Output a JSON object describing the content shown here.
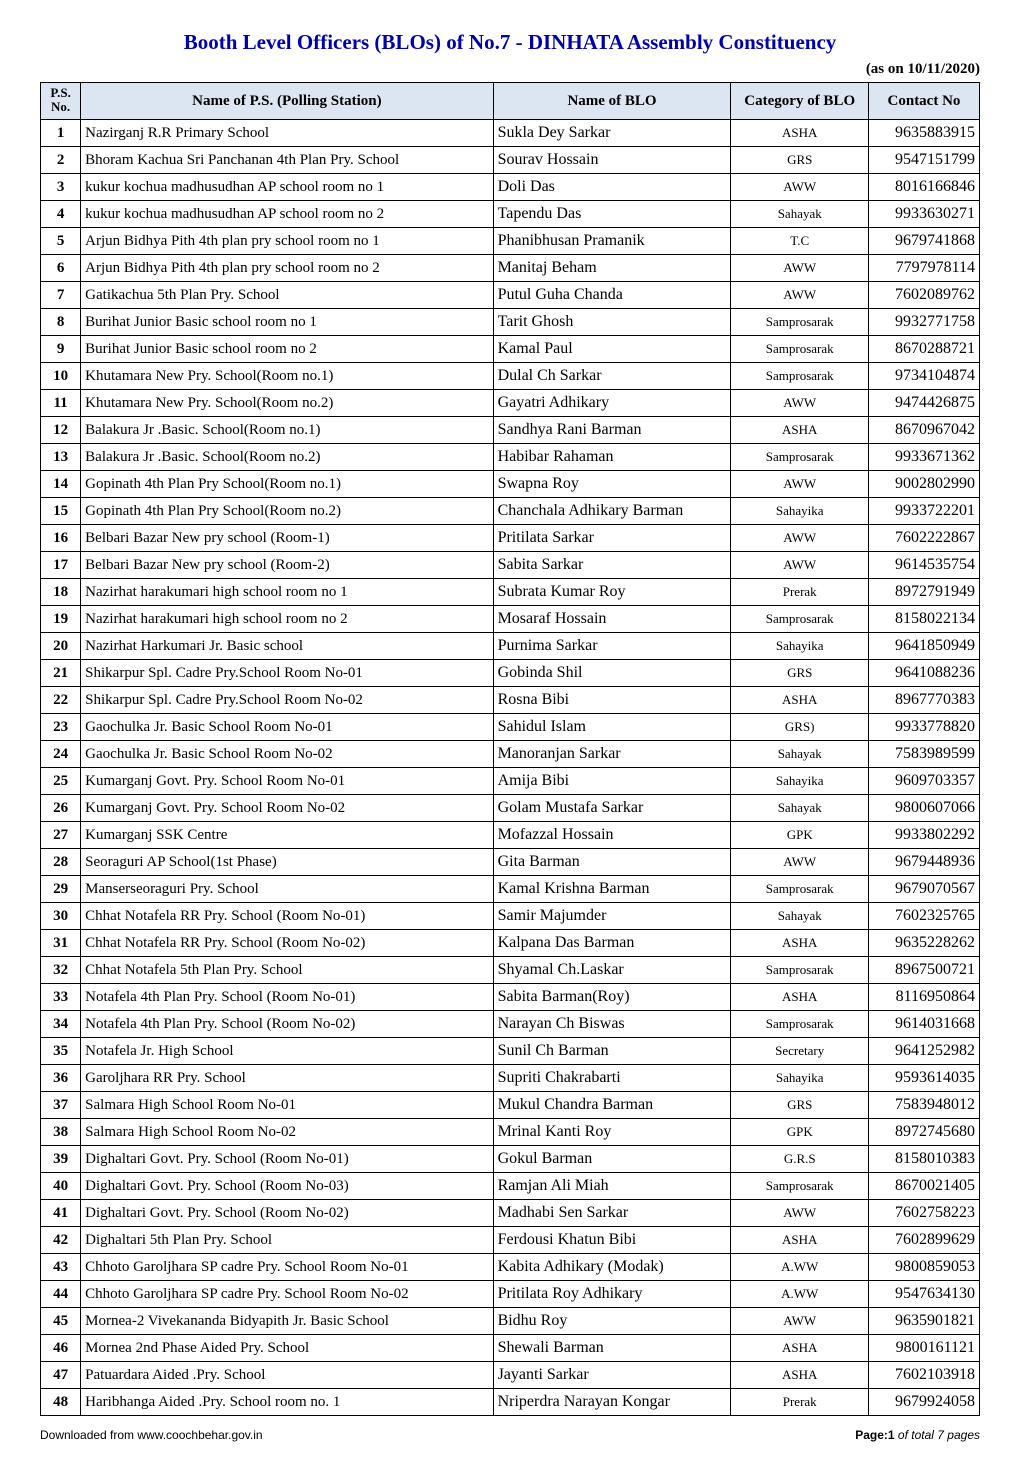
{
  "title": "Booth Level Officers (BLOs) of No.7 - DINHATA Assembly Constituency",
  "as_of": "(as on 10/11/2020)",
  "colors": {
    "title": "#0000aa",
    "header_bg": "#dce6f2",
    "border": "#000000",
    "background": "#ffffff"
  },
  "columns": {
    "psno": "P.S. No.",
    "ps": "Name of P.S. (Polling Station)",
    "blo": "Name of BLO",
    "cat": "Category of BLO",
    "phone": "Contact No"
  },
  "rows": [
    {
      "no": "1",
      "ps": "Nazirganj R.R Primary School",
      "blo": "Sukla Dey Sarkar",
      "cat": "ASHA",
      "phone": "9635883915"
    },
    {
      "no": "2",
      "ps": "Bhoram Kachua Sri Panchanan 4th Plan Pry. School",
      "blo": "Sourav Hossain",
      "cat": "GRS",
      "phone": "9547151799"
    },
    {
      "no": "3",
      "ps": "kukur kochua madhusudhan AP school room no 1",
      "blo": "Doli Das",
      "cat": "AWW",
      "phone": "8016166846"
    },
    {
      "no": "4",
      "ps": "kukur kochua madhusudhan AP school room no 2",
      "blo": "Tapendu Das",
      "cat": "Sahayak",
      "phone": "9933630271"
    },
    {
      "no": "5",
      "ps": "Arjun Bidhya Pith 4th plan pry school room no 1",
      "blo": "Phanibhusan Pramanik",
      "cat": "T.C",
      "phone": "9679741868"
    },
    {
      "no": "6",
      "ps": "Arjun Bidhya Pith 4th plan pry school room no 2",
      "blo": "Manitaj Beham",
      "cat": "AWW",
      "phone": "7797978114"
    },
    {
      "no": "7",
      "ps": "Gatikachua 5th Plan Pry. School",
      "blo": "Putul Guha Chanda",
      "cat": "AWW",
      "phone": "7602089762"
    },
    {
      "no": "8",
      "ps": "Burihat Junior Basic school room no 1",
      "blo": "Tarit Ghosh",
      "cat": "Samprosarak",
      "phone": "9932771758"
    },
    {
      "no": "9",
      "ps": "Burihat Junior Basic school room no 2",
      "blo": "Kamal Paul",
      "cat": "Samprosarak",
      "phone": "8670288721"
    },
    {
      "no": "10",
      "ps": "Khutamara New Pry. School(Room no.1)",
      "blo": "Dulal Ch Sarkar",
      "cat": "Samprosarak",
      "phone": "9734104874"
    },
    {
      "no": "11",
      "ps": "Khutamara New Pry. School(Room no.2)",
      "blo": "Gayatri Adhikary",
      "cat": "AWW",
      "phone": "9474426875"
    },
    {
      "no": "12",
      "ps": "Balakura Jr .Basic. School(Room no.1)",
      "blo": "Sandhya Rani Barman",
      "cat": "ASHA",
      "phone": "8670967042"
    },
    {
      "no": "13",
      "ps": "Balakura Jr .Basic. School(Room no.2)",
      "blo": "Habibar Rahaman",
      "cat": "Samprosarak",
      "phone": "9933671362"
    },
    {
      "no": "14",
      "ps": "Gopinath 4th Plan Pry School(Room no.1)",
      "blo": "Swapna Roy",
      "cat": "AWW",
      "phone": "9002802990"
    },
    {
      "no": "15",
      "ps": "Gopinath 4th Plan Pry School(Room no.2)",
      "blo": "Chanchala Adhikary Barman",
      "cat": "Sahayika",
      "phone": "9933722201"
    },
    {
      "no": "16",
      "ps": "Belbari Bazar New pry school (Room-1)",
      "blo": "Pritilata Sarkar",
      "cat": "AWW",
      "phone": "7602222867"
    },
    {
      "no": "17",
      "ps": "Belbari Bazar New pry school (Room-2)",
      "blo": "Sabita Sarkar",
      "cat": "AWW",
      "phone": "9614535754"
    },
    {
      "no": "18",
      "ps": "Nazirhat harakumari high school room no 1",
      "blo": "Subrata Kumar Roy",
      "cat": "Prerak",
      "phone": "8972791949"
    },
    {
      "no": "19",
      "ps": "Nazirhat harakumari high school room no 2",
      "blo": "Mosaraf Hossain",
      "cat": "Samprosarak",
      "phone": "8158022134"
    },
    {
      "no": "20",
      "ps": "Nazirhat Harkumari Jr. Basic school",
      "blo": "Purnima Sarkar",
      "cat": "Sahayika",
      "phone": "9641850949"
    },
    {
      "no": "21",
      "ps": "Shikarpur Spl. Cadre Pry.School Room No-01",
      "blo": "Gobinda Shil",
      "cat": "GRS",
      "phone": "9641088236"
    },
    {
      "no": "22",
      "ps": "Shikarpur Spl. Cadre Pry.School Room No-02",
      "blo": "Rosna Bibi",
      "cat": "ASHA",
      "phone": "8967770383"
    },
    {
      "no": "23",
      "ps": "Gaochulka Jr. Basic School Room No-01",
      "blo": "Sahidul Islam",
      "cat": "GRS)",
      "phone": "9933778820"
    },
    {
      "no": "24",
      "ps": "Gaochulka Jr. Basic School Room No-02",
      "blo": "Manoranjan Sarkar",
      "cat": "Sahayak",
      "phone": "7583989599"
    },
    {
      "no": "25",
      "ps": "Kumarganj Govt. Pry. School Room No-01",
      "blo": "Amija Bibi",
      "cat": "Sahayika",
      "phone": "9609703357"
    },
    {
      "no": "26",
      "ps": "Kumarganj Govt. Pry. School Room No-02",
      "blo": "Golam Mustafa Sarkar",
      "cat": "Sahayak",
      "phone": "9800607066"
    },
    {
      "no": "27",
      "ps": "Kumarganj SSK Centre",
      "blo": "Mofazzal Hossain",
      "cat": "GPK",
      "phone": "9933802292"
    },
    {
      "no": "28",
      "ps": "Seoraguri AP School(1st Phase)",
      "blo": "Gita Barman",
      "cat": "AWW",
      "phone": "9679448936"
    },
    {
      "no": "29",
      "ps": "Manserseoraguri Pry. School",
      "blo": "Kamal Krishna Barman",
      "cat": "Samprosarak",
      "phone": "9679070567"
    },
    {
      "no": "30",
      "ps": "Chhat Notafela RR Pry. School (Room No-01)",
      "blo": "Samir Majumder",
      "cat": "Sahayak",
      "phone": "7602325765"
    },
    {
      "no": "31",
      "ps": "Chhat Notafela RR Pry. School (Room No-02)",
      "blo": "Kalpana Das Barman",
      "cat": "ASHA",
      "phone": "9635228262"
    },
    {
      "no": "32",
      "ps": "Chhat Notafela 5th Plan Pry. School",
      "blo": "Shyamal Ch.Laskar",
      "cat": "Samprosarak",
      "phone": "8967500721"
    },
    {
      "no": "33",
      "ps": "Notafela 4th Plan Pry. School (Room No-01)",
      "blo": "Sabita Barman(Roy)",
      "cat": "ASHA",
      "phone": "8116950864"
    },
    {
      "no": "34",
      "ps": "Notafela 4th Plan Pry. School (Room No-02)",
      "blo": "Narayan Ch Biswas",
      "cat": "Samprosarak",
      "phone": "9614031668"
    },
    {
      "no": "35",
      "ps": "Notafela Jr. High School",
      "blo": "Sunil Ch Barman",
      "cat": "Secretary",
      "phone": "9641252982"
    },
    {
      "no": "36",
      "ps": "Garoljhara RR Pry. School",
      "blo": "Supriti Chakrabarti",
      "cat": "Sahayika",
      "phone": "9593614035"
    },
    {
      "no": "37",
      "ps": "Salmara High School Room No-01",
      "blo": "Mukul Chandra Barman",
      "cat": "GRS",
      "phone": "7583948012"
    },
    {
      "no": "38",
      "ps": "Salmara High School Room No-02",
      "blo": "Mrinal Kanti Roy",
      "cat": "GPK",
      "phone": "8972745680"
    },
    {
      "no": "39",
      "ps": "Dighaltari Govt. Pry. School (Room No-01)",
      "blo": "Gokul Barman",
      "cat": "G.R.S",
      "phone": "8158010383"
    },
    {
      "no": "40",
      "ps": "Dighaltari Govt. Pry. School (Room No-03)",
      "blo": "Ramjan Ali Miah",
      "cat": "Samprosarak",
      "phone": "8670021405"
    },
    {
      "no": "41",
      "ps": "Dighaltari Govt. Pry. School (Room No-02)",
      "blo": "Madhabi Sen Sarkar",
      "cat": "AWW",
      "phone": "7602758223"
    },
    {
      "no": "42",
      "ps": "Dighaltari 5th Plan Pry. School",
      "blo": "Ferdousi Khatun Bibi",
      "cat": "ASHA",
      "phone": "7602899629"
    },
    {
      "no": "43",
      "ps": "Chhoto Garoljhara SP cadre Pry. School Room No-01",
      "blo": "Kabita Adhikary (Modak)",
      "cat": "A.WW",
      "phone": "9800859053"
    },
    {
      "no": "44",
      "ps": "Chhoto Garoljhara SP cadre Pry. School Room No-02",
      "blo": "Pritilata Roy Adhikary",
      "cat": "A.WW",
      "phone": "9547634130"
    },
    {
      "no": "45",
      "ps": "Mornea-2 Vivekananda Bidyapith Jr. Basic School",
      "blo": "Bidhu Roy",
      "cat": "AWW",
      "phone": "9635901821"
    },
    {
      "no": "46",
      "ps": "Mornea 2nd Phase Aided Pry. School",
      "blo": "Shewali Barman",
      "cat": "ASHA",
      "phone": "9800161121"
    },
    {
      "no": "47",
      "ps": "Patuardara Aided .Pry. School",
      "blo": "Jayanti Sarkar",
      "cat": "ASHA",
      "phone": "7602103918"
    },
    {
      "no": "48",
      "ps": "Haribhanga Aided .Pry. School room no. 1",
      "blo": "Nriperdra Narayan Kongar",
      "cat": "Prerak",
      "phone": "9679924058"
    }
  ],
  "footer": {
    "left": "Downloaded from www.coochbehar.gov.in",
    "right_bold": "Page:1",
    "right_italic": " of total 7 pages"
  }
}
